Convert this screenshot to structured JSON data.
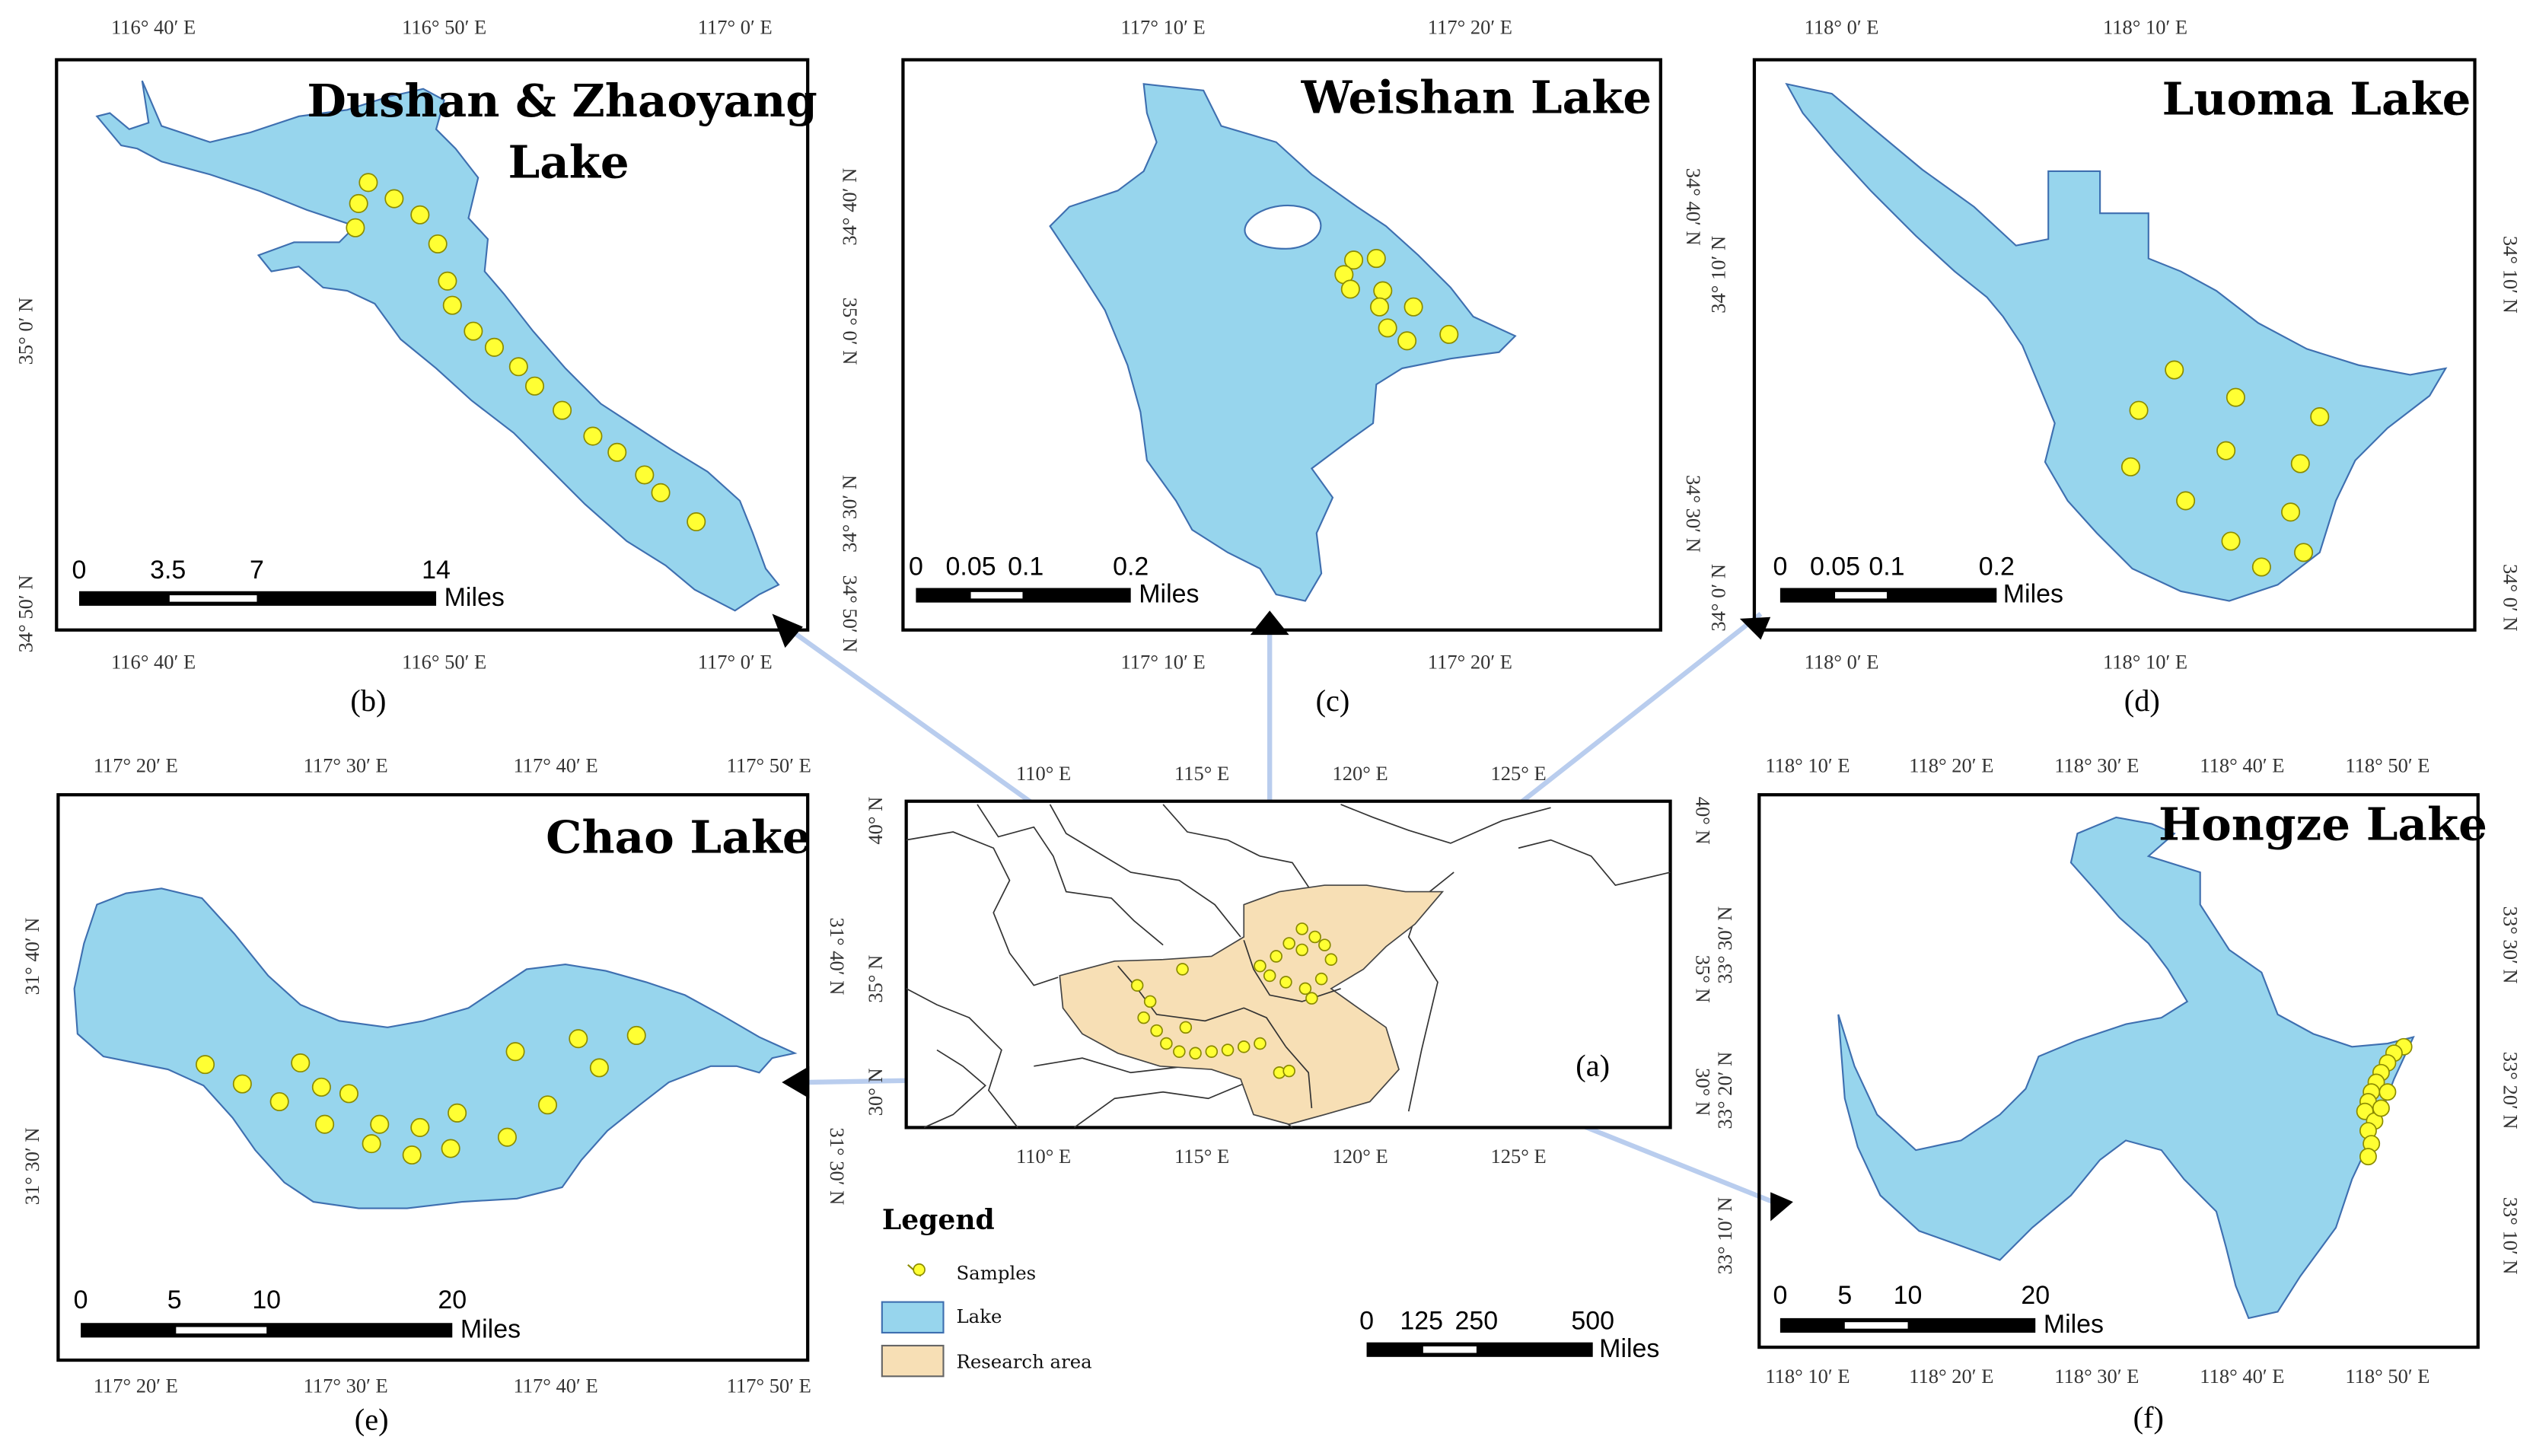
{
  "panels": {
    "b": {
      "title_line1": "Dushan & Zhaoyang",
      "title_line2": "Lake",
      "sublabel": "(b)",
      "top_ticks": [
        "116° 40′ E",
        "116° 50′ E",
        "117° 0′ E"
      ],
      "bottom_ticks": [
        "116° 40′ E",
        "116° 50′ E",
        "117° 0′ E"
      ],
      "left_ticks": [
        "35° 0′ N",
        "34° 50′ N"
      ],
      "right_ticks": [
        "35° 0′ N",
        "34° 50′ N"
      ],
      "scale": [
        "0",
        "3.5",
        "7",
        "14",
        "Miles"
      ]
    },
    "c": {
      "title": "Weishan Lake",
      "sublabel": "(c)",
      "top_ticks": [
        "117° 10′ E",
        "117° 20′ E"
      ],
      "bottom_ticks": [
        "117° 10′ E",
        "117° 20′ E"
      ],
      "left_ticks": [
        "34° 40′ N",
        "34° 30′ N"
      ],
      "right_ticks": [
        "34° 40′ N",
        "34° 30′ N"
      ],
      "scale": [
        "0",
        "0.05",
        "0.1",
        "0.2",
        "Miles"
      ]
    },
    "d": {
      "title": "Luoma Lake",
      "sublabel": "(d)",
      "top_ticks": [
        "118° 0′ E",
        "118° 10′ E"
      ],
      "bottom_ticks": [
        "118° 0′ E",
        "118° 10′ E"
      ],
      "left_ticks": [
        "34° 10′ N",
        "34° 0′ N"
      ],
      "right_ticks": [
        "34° 10′ N",
        "34° 0′ N"
      ],
      "scale": [
        "0",
        "0.05",
        "0.1",
        "0.2",
        "Miles"
      ]
    },
    "e": {
      "title": "Chao Lake",
      "sublabel": "(e)",
      "top_ticks": [
        "117° 20′ E",
        "117° 30′ E",
        "117° 40′ E",
        "117° 50′ E"
      ],
      "bottom_ticks": [
        "117° 20′ E",
        "117° 30′ E",
        "117° 40′ E",
        "117° 50′ E"
      ],
      "left_ticks": [
        "31° 40′ N",
        "31° 30′ N"
      ],
      "right_ticks": [
        "31° 40′ N",
        "31° 30′ N"
      ],
      "scale": [
        "0",
        "5",
        "10",
        "20",
        "Miles"
      ]
    },
    "f": {
      "title": "Hongze Lake",
      "sublabel": "(f)",
      "top_ticks": [
        "118° 10′ E",
        "118° 20′ E",
        "118° 30′ E",
        "118° 40′ E",
        "118° 50′ E"
      ],
      "bottom_ticks": [
        "118° 10′ E",
        "118° 20′ E",
        "118° 30′ E",
        "118° 40′ E",
        "118° 50′ E"
      ],
      "left_ticks": [
        "33° 30′ N",
        "33° 20′ N",
        "33° 10′ N"
      ],
      "right_ticks": [
        "33° 30′ N",
        "33° 20′ N",
        "33° 10′ N"
      ],
      "scale": [
        "0",
        "5",
        "10",
        "20",
        "Miles"
      ]
    },
    "a": {
      "sublabel": "(a)",
      "top_ticks": [
        "110° E",
        "115° E",
        "120° E",
        "125° E"
      ],
      "bottom_ticks": [
        "110° E",
        "115° E",
        "120° E",
        "125° E"
      ],
      "left_ticks": [
        "40° N",
        "35° N",
        "30° N"
      ],
      "right_ticks": [
        "40° N",
        "35° N",
        "30° N"
      ],
      "scale": [
        "0",
        "125",
        "250",
        "500",
        "Miles"
      ]
    }
  },
  "legend": {
    "title": "Legend",
    "items": [
      "Samples",
      "Lake",
      "Research area"
    ],
    "colors": {
      "samples": "#ffff33",
      "lake": "#97d5ed",
      "research_area": "#f7dfb5"
    }
  },
  "colors": {
    "lake": "#97d5ed",
    "lake_outline": "#3e6fb0",
    "sample": "#ffff33",
    "leader_line": "#b9cdee"
  }
}
